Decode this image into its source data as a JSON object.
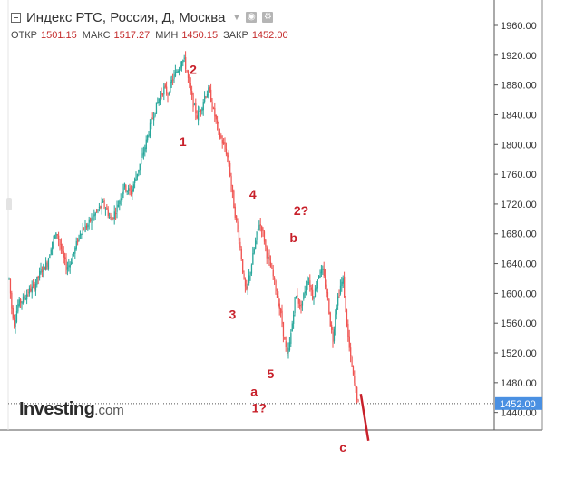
{
  "header": {
    "title": "Индекс РТС, Россия, Д, Москва",
    "settings_icon": "gear-icon",
    "screenshot_icon": "camera-icon"
  },
  "ohlc": {
    "open_label": "ОТКР",
    "open": "1501.15",
    "high_label": "МАКС",
    "high": "1517.27",
    "low_label": "МИН",
    "low": "1450.15",
    "close_label": "ЗАКР",
    "close": "1452.00"
  },
  "logo": {
    "name": "Investing",
    "domain": ".com"
  },
  "colors": {
    "bullish": "#26a69a",
    "bearish": "#ef5350",
    "annotation": "#c8202a",
    "price_tag": "#4a90e2"
  },
  "chart_data": {
    "type": "candlestick",
    "title": "Индекс РТС, Россия, Д, Москва",
    "ylim": [
      1430,
      1975
    ],
    "y_ticks": [
      1960,
      1920,
      1880,
      1840,
      1800,
      1760,
      1720,
      1680,
      1640,
      1600,
      1560,
      1520,
      1480,
      1440
    ],
    "y_tick_labels": [
      "1960.00",
      "1920.00",
      "1880.00",
      "1840.00",
      "1800.00",
      "1760.00",
      "1720.00",
      "1680.00",
      "1640.00",
      "1600.00",
      "1560.00",
      "1520.00",
      "1480.00",
      "1440.00"
    ],
    "last_price": 1452,
    "last_price_label": "1452.00",
    "grid": false,
    "price_path": [
      [
        0,
        1620
      ],
      [
        2,
        1580
      ],
      [
        4,
        1560
      ],
      [
        7,
        1585
      ],
      [
        11,
        1592
      ],
      [
        15,
        1602
      ],
      [
        20,
        1610
      ],
      [
        25,
        1630
      ],
      [
        30,
        1640
      ],
      [
        34,
        1670
      ],
      [
        38,
        1680
      ],
      [
        42,
        1652
      ],
      [
        45,
        1635
      ],
      [
        48,
        1640
      ],
      [
        52,
        1660
      ],
      [
        56,
        1683
      ],
      [
        61,
        1690
      ],
      [
        65,
        1700
      ],
      [
        70,
        1712
      ],
      [
        74,
        1720
      ],
      [
        77,
        1712
      ],
      [
        80,
        1698
      ],
      [
        83,
        1708
      ],
      [
        87,
        1725
      ],
      [
        90,
        1745
      ],
      [
        93,
        1740
      ],
      [
        96,
        1735
      ],
      [
        99,
        1752
      ],
      [
        102,
        1768
      ],
      [
        106,
        1790
      ],
      [
        110,
        1818
      ],
      [
        114,
        1842
      ],
      [
        118,
        1862
      ],
      [
        122,
        1875
      ],
      [
        125,
        1868
      ],
      [
        128,
        1885
      ],
      [
        131,
        1895
      ],
      [
        134,
        1905
      ],
      [
        136,
        1915
      ],
      [
        138,
        1912
      ],
      [
        140,
        1898
      ],
      [
        142,
        1878
      ],
      [
        145,
        1855
      ],
      [
        148,
        1838
      ],
      [
        151,
        1848
      ],
      [
        154,
        1865
      ],
      [
        157,
        1872
      ],
      [
        159,
        1862
      ],
      [
        161,
        1845
      ],
      [
        163,
        1832
      ],
      [
        165,
        1815
      ],
      [
        167,
        1808
      ],
      [
        169,
        1798
      ],
      [
        171,
        1790
      ],
      [
        173,
        1775
      ],
      [
        175,
        1745
      ],
      [
        177,
        1718
      ],
      [
        179,
        1695
      ],
      [
        181,
        1675
      ],
      [
        183,
        1648
      ],
      [
        185,
        1615
      ],
      [
        187,
        1600
      ],
      [
        189,
        1622
      ],
      [
        191,
        1640
      ],
      [
        193,
        1660
      ],
      [
        195,
        1678
      ],
      [
        197,
        1694
      ],
      [
        199,
        1688
      ],
      [
        201,
        1672
      ],
      [
        203,
        1652
      ],
      [
        205,
        1640
      ],
      [
        207,
        1630
      ],
      [
        209,
        1615
      ],
      [
        211,
        1596
      ],
      [
        213,
        1580
      ],
      [
        215,
        1560
      ],
      [
        217,
        1535
      ],
      [
        219,
        1515
      ],
      [
        221,
        1532
      ],
      [
        223,
        1560
      ],
      [
        225,
        1592
      ],
      [
        227,
        1598
      ],
      [
        229,
        1580
      ],
      [
        231,
        1590
      ],
      [
        233,
        1605
      ],
      [
        235,
        1620
      ],
      [
        237,
        1612
      ],
      [
        239,
        1596
      ],
      [
        241,
        1604
      ],
      [
        243,
        1620
      ],
      [
        245,
        1632
      ],
      [
        247,
        1628
      ],
      [
        249,
        1612
      ],
      [
        251,
        1592
      ],
      [
        253,
        1560
      ],
      [
        255,
        1538
      ],
      [
        257,
        1575
      ],
      [
        259,
        1595
      ],
      [
        261,
        1610
      ],
      [
        263,
        1618
      ],
      [
        265,
        1578
      ],
      [
        267,
        1540
      ],
      [
        269,
        1512
      ],
      [
        271,
        1488
      ],
      [
        273,
        1470
      ],
      [
        275,
        1452
      ]
    ],
    "annotations": [
      {
        "text": "2",
        "x": 145,
        "y": 1895
      },
      {
        "text": "1",
        "x": 137,
        "y": 1798
      },
      {
        "text": "4",
        "x": 192,
        "y": 1727
      },
      {
        "text": "2?",
        "x": 230,
        "y": 1705
      },
      {
        "text": "b",
        "x": 224,
        "y": 1669
      },
      {
        "text": "3",
        "x": 176,
        "y": 1566
      },
      {
        "text": "5",
        "x": 206,
        "y": 1486
      },
      {
        "text": "a",
        "x": 193,
        "y": 1462
      },
      {
        "text": "1?",
        "x": 197,
        "y": 1440
      },
      {
        "text": "c",
        "x": 263,
        "y": 1387
      }
    ],
    "forecast_line": [
      [
        277,
        1465
      ],
      [
        283,
        1402
      ]
    ],
    "last_price_line": true
  }
}
